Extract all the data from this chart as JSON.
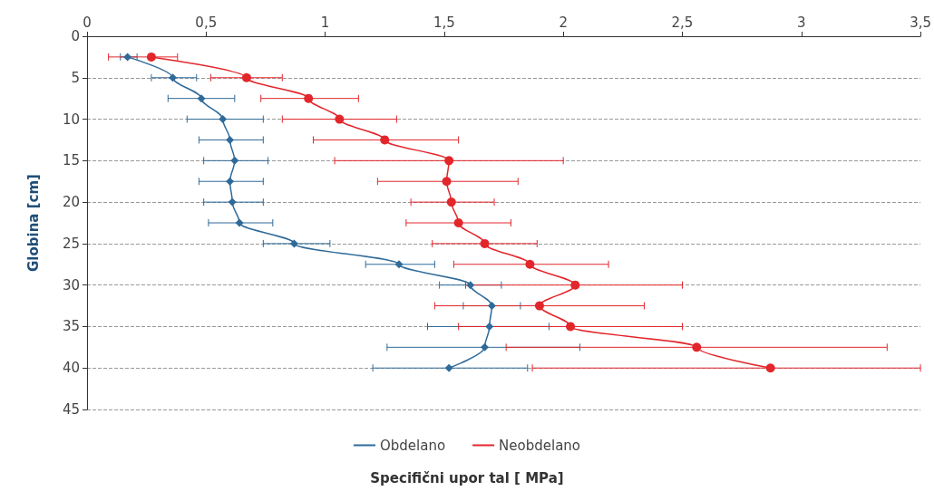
{
  "chart_data": {
    "type": "line",
    "xlabel": "Specifični upor tal [ MPa]",
    "ylabel": "Globina [cm]",
    "xlim": [
      0,
      3.5
    ],
    "xticks": [
      0,
      {
        "value": 0.5,
        "label": "0,5"
      },
      1,
      {
        "value": 1.5,
        "label": "1,5"
      },
      2,
      {
        "value": 2.5,
        "label": "2,5"
      },
      3,
      {
        "value": 3.5,
        "label": "3,5"
      }
    ],
    "ylim": [
      45,
      0
    ],
    "yticks": [
      0,
      5,
      10,
      15,
      20,
      25,
      30,
      35,
      40,
      45
    ],
    "grid": "y",
    "legend": "bottom",
    "line_style": "solid",
    "series": [
      {
        "name": "Obdelano",
        "color": "#2f6a99",
        "marker": "diamond",
        "x": [
          0.17,
          0.36,
          0.48,
          0.57,
          0.6,
          0.62,
          0.6,
          0.61,
          0.64,
          0.87,
          1.31,
          1.61,
          1.7,
          1.69,
          1.67,
          1.52
        ],
        "values": [
          2.5,
          5,
          7.5,
          10,
          12.5,
          15,
          17.5,
          20,
          22.5,
          25,
          27.5,
          30,
          32.5,
          35,
          37.5,
          40
        ],
        "xerrors": [
          [
            0.14,
            0.21
          ],
          [
            0.27,
            0.46
          ],
          [
            0.34,
            0.62
          ],
          [
            0.42,
            0.74
          ],
          [
            0.47,
            0.74
          ],
          [
            0.49,
            0.76
          ],
          [
            0.47,
            0.74
          ],
          [
            0.49,
            0.74
          ],
          [
            0.51,
            0.78
          ],
          [
            0.74,
            1.02
          ],
          [
            1.17,
            1.46
          ],
          [
            1.48,
            1.74
          ],
          [
            1.58,
            1.82
          ],
          [
            1.43,
            1.94
          ],
          [
            1.26,
            2.07
          ],
          [
            1.2,
            1.85
          ]
        ]
      },
      {
        "name": "Neobdelano",
        "color": "#e3262b",
        "marker": "circle",
        "x": [
          0.27,
          0.67,
          0.93,
          1.06,
          1.25,
          1.52,
          1.51,
          1.53,
          1.56,
          1.67,
          1.86,
          2.05,
          1.9,
          2.03,
          2.56,
          2.87
        ],
        "values": [
          2.5,
          5,
          7.5,
          10,
          12.5,
          15,
          17.5,
          20,
          22.5,
          25,
          27.5,
          30,
          32.5,
          35,
          37.5,
          40
        ],
        "xerrors": [
          [
            0.09,
            0.38
          ],
          [
            0.52,
            0.82
          ],
          [
            0.73,
            1.14
          ],
          [
            0.82,
            1.3
          ],
          [
            0.95,
            1.56
          ],
          [
            1.04,
            2.0
          ],
          [
            1.22,
            1.81
          ],
          [
            1.36,
            1.71
          ],
          [
            1.34,
            1.78
          ],
          [
            1.45,
            1.89
          ],
          [
            1.54,
            2.19
          ],
          [
            1.59,
            2.5
          ],
          [
            1.46,
            2.34
          ],
          [
            1.56,
            2.5
          ],
          [
            1.76,
            3.36
          ],
          [
            1.87,
            3.5
          ]
        ]
      }
    ]
  }
}
